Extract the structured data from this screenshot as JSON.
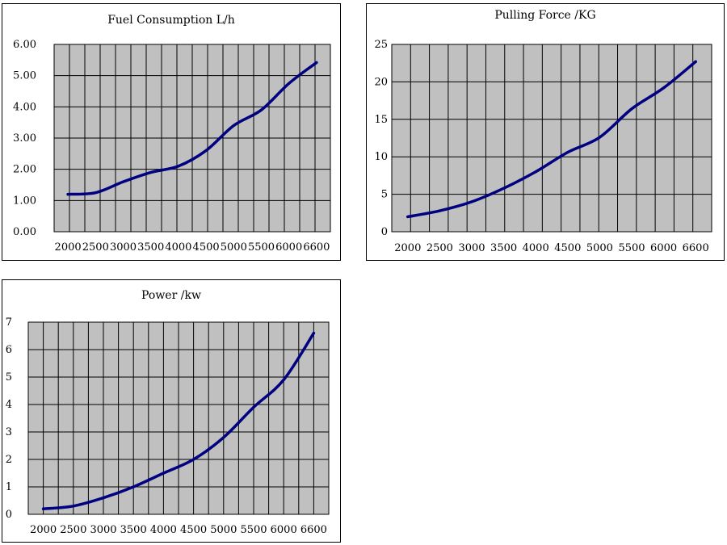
{
  "chart_data": [
    {
      "type": "line",
      "title": "Fuel Consumption L/h",
      "x": [
        2000,
        2500,
        3000,
        3500,
        4000,
        4500,
        5000,
        5500,
        6000,
        6600
      ],
      "x_tick_labels": [
        "2000",
        "2500",
        "3000",
        "3500",
        "4000",
        "4500",
        "5000",
        "5500",
        "6000",
        "6600"
      ],
      "series": [
        {
          "values": [
            1.2,
            1.25,
            1.6,
            1.9,
            2.1,
            2.6,
            3.4,
            3.9,
            4.75,
            5.42
          ]
        }
      ],
      "ylim": [
        0,
        6
      ],
      "y_ticks": [
        0,
        1,
        2,
        3,
        4,
        5,
        6
      ],
      "y_tick_labels": [
        "0.00",
        "1.00",
        "2.00",
        "3.00",
        "4.00",
        "5.00",
        "6.00"
      ],
      "grid": true,
      "xlabel": "",
      "ylabel": ""
    },
    {
      "type": "line",
      "title": "Pulling Force /KG",
      "x": [
        2000,
        2500,
        3000,
        3500,
        4000,
        4500,
        5000,
        5500,
        6000,
        6600
      ],
      "x_tick_labels": [
        "2000",
        "2500",
        "3000",
        "3500",
        "4000",
        "4500",
        "5000",
        "5500",
        "6000",
        "6600"
      ],
      "series": [
        {
          "values": [
            2,
            2.8,
            4,
            5.8,
            8,
            10.6,
            12.6,
            16.4,
            19.2,
            22.7
          ]
        }
      ],
      "ylim": [
        0,
        25
      ],
      "y_ticks": [
        0,
        5,
        10,
        15,
        20,
        25
      ],
      "y_tick_labels": [
        "0",
        "5",
        "10",
        "15",
        "20",
        "25"
      ],
      "grid": true,
      "xlabel": "",
      "ylabel": ""
    },
    {
      "type": "line",
      "title": "Power /kw",
      "x": [
        2000,
        2500,
        3000,
        3500,
        4000,
        4500,
        5000,
        5500,
        6000,
        6600
      ],
      "x_tick_labels": [
        "2000",
        "2500",
        "3000",
        "3500",
        "4000",
        "4500",
        "5000",
        "5500",
        "6000",
        "6600"
      ],
      "series": [
        {
          "values": [
            0.2,
            0.3,
            0.6,
            1.0,
            1.5,
            2.0,
            2.8,
            3.9,
            4.9,
            6.6
          ]
        }
      ],
      "ylim": [
        0,
        7
      ],
      "y_ticks": [
        0,
        1,
        2,
        3,
        4,
        5,
        6,
        7
      ],
      "y_tick_labels": [
        "0",
        "1",
        "2",
        "3",
        "4",
        "5",
        "6",
        "7"
      ],
      "grid": true,
      "xlabel": "",
      "ylabel": ""
    }
  ],
  "colors": {
    "plot_background": "#c0c0c0",
    "grid": "#000000",
    "line": "#000080"
  }
}
